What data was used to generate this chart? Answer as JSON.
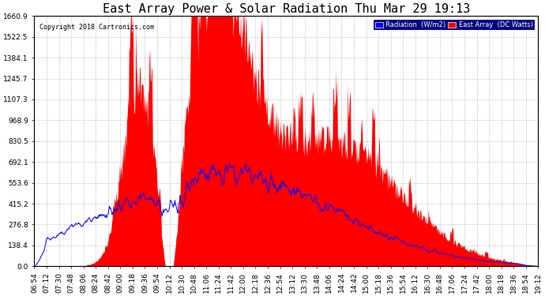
{
  "title": "East Array Power & Solar Radiation Thu Mar 29 19:13",
  "copyright": "Copyright 2018 Cartronics.com",
  "legend_labels": [
    "Radiation  (W/m2)",
    "East Array  (DC Watts)"
  ],
  "y_ticks": [
    0.0,
    138.4,
    276.8,
    415.2,
    553.6,
    692.1,
    830.5,
    968.9,
    1107.3,
    1245.7,
    1384.1,
    1522.5,
    1660.9
  ],
  "y_max": 1660.9,
  "x_tick_labels": [
    "06:54",
    "07:12",
    "07:30",
    "07:48",
    "08:06",
    "08:24",
    "08:42",
    "09:00",
    "09:18",
    "09:36",
    "09:54",
    "10:12",
    "10:30",
    "10:48",
    "11:06",
    "11:24",
    "11:42",
    "12:00",
    "12:18",
    "12:36",
    "12:54",
    "13:12",
    "13:30",
    "13:48",
    "14:06",
    "14:24",
    "14:42",
    "15:00",
    "15:18",
    "15:36",
    "15:54",
    "16:12",
    "16:30",
    "16:48",
    "17:06",
    "17:24",
    "17:42",
    "18:00",
    "18:18",
    "18:36",
    "18:54",
    "19:12"
  ],
  "plot_bg_color": "#ffffff",
  "grid_color": "#999999",
  "title_fontsize": 11,
  "axis_fontsize": 6.5,
  "n_points": 900
}
